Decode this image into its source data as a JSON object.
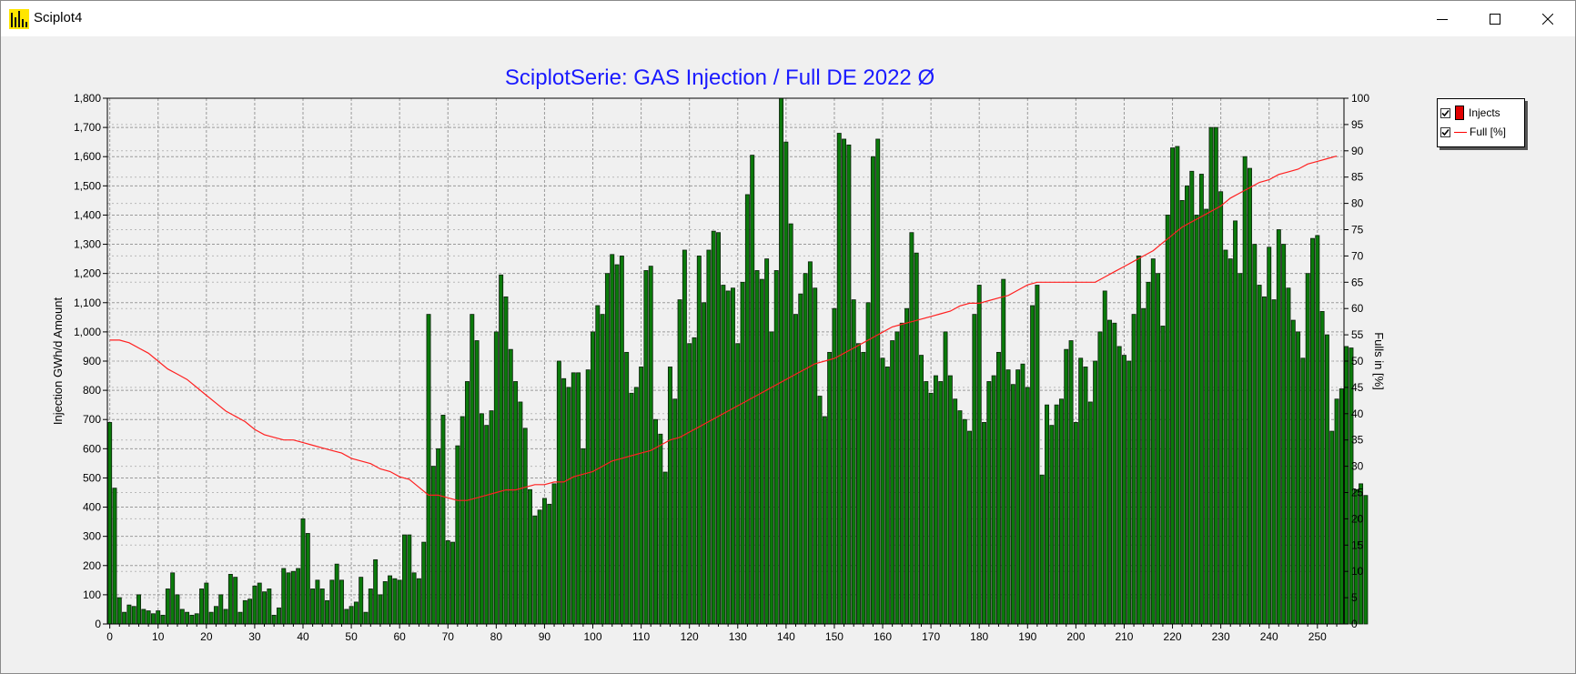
{
  "window": {
    "title": "Sciplot4",
    "controls": {
      "minimize": "minimize",
      "maximize": "maximize",
      "close": "close"
    }
  },
  "legend": {
    "items": [
      {
        "label": "Injects",
        "checked": true,
        "color": "#e00000",
        "style": "box"
      },
      {
        "label": "Full [%]",
        "checked": true,
        "color": "#ff0000",
        "style": "line"
      }
    ]
  },
  "colors": {
    "bar_fill": "#0a7a0a",
    "bar_stroke": "#0b1f0b",
    "line": "#ff2020",
    "title": "#1a1aff"
  },
  "chart_data": {
    "type": "bar",
    "title": "SciplotSerie: GAS Injection / Full DE 2022 Ø",
    "ylabel": "Injection GWh/d Amount",
    "y2label": "Fulls in [%]",
    "xlim": [
      0,
      255
    ],
    "ylim": [
      0,
      1800
    ],
    "y2lim": [
      0,
      100
    ],
    "xticks": [
      0,
      10,
      20,
      30,
      40,
      50,
      60,
      70,
      80,
      90,
      100,
      110,
      120,
      130,
      140,
      150,
      160,
      170,
      180,
      190,
      200,
      210,
      220,
      230,
      240,
      250
    ],
    "yticks": [
      0,
      100,
      200,
      300,
      400,
      500,
      600,
      700,
      800,
      900,
      1000,
      1100,
      1200,
      1300,
      1400,
      1500,
      1600,
      1700,
      1800
    ],
    "yticklabels": [
      "0",
      "100",
      "200",
      "300",
      "400",
      "500",
      "600",
      "700",
      "800",
      "900",
      "1,000",
      "1,100",
      "1,200",
      "1,300",
      "1,400",
      "1,500",
      "1,600",
      "1,700",
      "1,800"
    ],
    "y2ticks": [
      0,
      5,
      10,
      15,
      20,
      25,
      30,
      35,
      40,
      45,
      50,
      55,
      60,
      65,
      70,
      75,
      80,
      85,
      90,
      95,
      100
    ],
    "grid": true,
    "legend_position": "right",
    "series": [
      {
        "name": "Injects",
        "type": "bar",
        "axis": "left",
        "values": [
          690,
          465,
          90,
          40,
          65,
          60,
          100,
          50,
          45,
          35,
          45,
          30,
          120,
          175,
          100,
          50,
          40,
          30,
          35,
          120,
          140,
          40,
          60,
          100,
          50,
          170,
          160,
          40,
          80,
          85,
          130,
          140,
          110,
          120,
          30,
          55,
          190,
          175,
          180,
          190,
          360,
          310,
          120,
          150,
          120,
          80,
          150,
          205,
          150,
          50,
          60,
          75,
          160,
          40,
          120,
          220,
          100,
          145,
          165,
          155,
          150,
          305,
          305,
          175,
          155,
          280,
          1060,
          540,
          600,
          715,
          285,
          280,
          610,
          710,
          830,
          1060,
          970,
          720,
          680,
          730,
          1000,
          1195,
          1120,
          940,
          830,
          760,
          670,
          460,
          370,
          390,
          430,
          410,
          480,
          900,
          840,
          810,
          860,
          860,
          600,
          870,
          1000,
          1090,
          1060,
          1200,
          1265,
          1230,
          1260,
          930,
          790,
          810,
          880,
          1210,
          1225,
          700,
          650,
          520,
          880,
          770,
          1110,
          1280,
          960,
          980,
          1260,
          1100,
          1280,
          1345,
          1340,
          1160,
          1140,
          1150,
          960,
          1170,
          1470,
          1605,
          1210,
          1180,
          1250,
          1000,
          1210,
          1810,
          1650,
          1370,
          1060,
          1130,
          1200,
          1240,
          1150,
          780,
          710,
          930,
          1080,
          1680,
          1660,
          1640,
          1110,
          960,
          930,
          1100,
          1600,
          1660,
          910,
          880,
          970,
          1000,
          1030,
          1080,
          1340,
          1270,
          920,
          830,
          790,
          850,
          830,
          1000,
          850,
          770,
          730,
          700,
          660,
          1060,
          1160,
          690,
          830,
          850,
          930,
          1180,
          870,
          820,
          870,
          890,
          810,
          1090,
          1160,
          510,
          750,
          680,
          750,
          770,
          940,
          970,
          690,
          910,
          880,
          760,
          900,
          1000,
          1140,
          1040,
          1030,
          950,
          920,
          900,
          1060,
          1260,
          1080,
          1170,
          1250,
          1200,
          1020,
          1400,
          1630,
          1635,
          1450,
          1500,
          1550,
          1400,
          1540,
          1420,
          1700,
          1700,
          1480,
          1280,
          1250,
          1380,
          1200,
          1600,
          1560,
          1300,
          1160,
          1120,
          1290,
          1110,
          1350,
          1300,
          1150,
          1040,
          1000,
          910,
          1200,
          1320,
          1330,
          1070,
          990,
          660,
          770,
          805,
          950,
          945,
          460,
          480,
          440
        ]
      },
      {
        "name": "Full [%]",
        "type": "line",
        "axis": "right",
        "x": [
          0,
          2,
          4,
          6,
          8,
          10,
          12,
          14,
          16,
          18,
          20,
          22,
          24,
          26,
          28,
          30,
          32,
          34,
          36,
          38,
          40,
          42,
          44,
          46,
          48,
          50,
          52,
          54,
          56,
          58,
          60,
          62,
          64,
          66,
          68,
          70,
          72,
          74,
          76,
          78,
          80,
          82,
          84,
          86,
          88,
          90,
          92,
          94,
          96,
          98,
          100,
          102,
          104,
          106,
          108,
          110,
          112,
          114,
          116,
          118,
          120,
          122,
          124,
          126,
          128,
          130,
          132,
          134,
          136,
          138,
          140,
          142,
          144,
          146,
          148,
          150,
          152,
          154,
          156,
          158,
          160,
          162,
          164,
          166,
          168,
          170,
          172,
          174,
          176,
          178,
          180,
          182,
          184,
          186,
          188,
          190,
          192,
          194,
          196,
          198,
          200,
          202,
          204,
          206,
          208,
          210,
          212,
          214,
          216,
          218,
          220,
          222,
          224,
          226,
          228,
          230,
          232,
          234,
          236,
          238,
          240,
          242,
          244,
          246,
          248,
          250,
          252,
          254
        ],
        "values": [
          54,
          54,
          53.5,
          52.5,
          51.5,
          50,
          48.5,
          47.5,
          46.5,
          45,
          43.5,
          42,
          40.5,
          39.5,
          38.5,
          37,
          36,
          35.5,
          35,
          35,
          34.5,
          34,
          33.5,
          33,
          32.5,
          31.5,
          31,
          30.5,
          29.5,
          29,
          28,
          27.5,
          26,
          24.5,
          24.5,
          24,
          23.5,
          23.5,
          24,
          24.5,
          25,
          25.5,
          25.5,
          26,
          26.5,
          26.5,
          27,
          27,
          28,
          28.5,
          29,
          30,
          31,
          31.5,
          32,
          32.5,
          33,
          34,
          35,
          35.5,
          36.5,
          37.5,
          38.5,
          39.5,
          40.5,
          41.5,
          42.5,
          43.5,
          44.5,
          45.5,
          46.5,
          47.5,
          48.5,
          49.5,
          50,
          50.5,
          51.5,
          52.5,
          53.5,
          54.5,
          55.5,
          56.5,
          57,
          57.5,
          58,
          58.5,
          59,
          59.5,
          60.5,
          61,
          61,
          61.5,
          62,
          62.5,
          63.5,
          64.5,
          65,
          65,
          65,
          65,
          65,
          65,
          65,
          66,
          67,
          68,
          69,
          70,
          71,
          72.5,
          74,
          75.5,
          76.5,
          77.5,
          78.5,
          79.5,
          81,
          82,
          83,
          84,
          84.5,
          85.5,
          86,
          86.5,
          87.5,
          88,
          88.5,
          89
        ]
      }
    ]
  }
}
